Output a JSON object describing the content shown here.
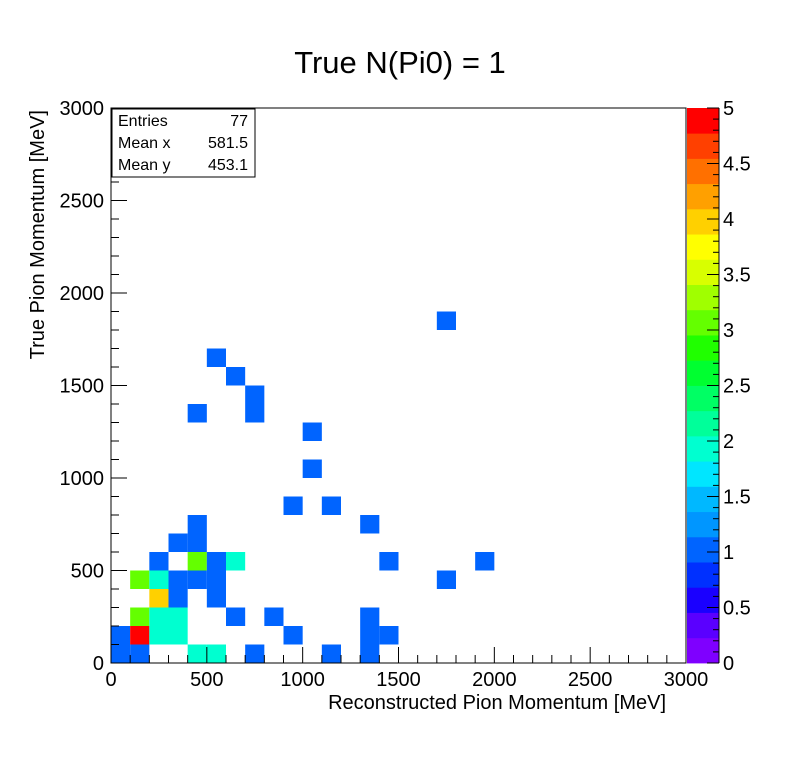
{
  "chart_data": {
    "type": "heatmap",
    "title": "True N(Pi0) = 1",
    "xlabel": "Reconstructed Pion Momentum [MeV]",
    "ylabel": "True Pion Momentum [MeV]",
    "xlim": [
      0,
      3000
    ],
    "ylim": [
      0,
      3000
    ],
    "bin_width": 100,
    "zlim": [
      0,
      5
    ],
    "x_ticks": [
      "0",
      "500",
      "1000",
      "1500",
      "2000",
      "2500",
      "3000"
    ],
    "y_ticks": [
      "0",
      "500",
      "1000",
      "1500",
      "2000",
      "2500",
      "3000"
    ],
    "z_ticks": [
      "0",
      "0.5",
      "1",
      "1.5",
      "2",
      "2.5",
      "3",
      "3.5",
      "4",
      "4.5",
      "5"
    ],
    "palette": [
      "#7f00ff",
      "#5a00ff",
      "#1a00ff",
      "#0030ff",
      "#0064ff",
      "#0096ff",
      "#00b8ff",
      "#00e6ff",
      "#00ffd0",
      "#00ff9a",
      "#00ff64",
      "#00ff30",
      "#20ff00",
      "#64ff00",
      "#a0ff00",
      "#d8ff00",
      "#ffff00",
      "#ffd000",
      "#ffa000",
      "#ff7000",
      "#ff4000",
      "#ff0000"
    ],
    "bins": [
      {
        "x": 0,
        "y": 0,
        "z": 1
      },
      {
        "x": 100,
        "y": 0,
        "z": 1
      },
      {
        "x": 400,
        "y": 0,
        "z": 2
      },
      {
        "x": 500,
        "y": 0,
        "z": 2
      },
      {
        "x": 700,
        "y": 0,
        "z": 1
      },
      {
        "x": 1100,
        "y": 0,
        "z": 1
      },
      {
        "x": 1300,
        "y": 0,
        "z": 1
      },
      {
        "x": 0,
        "y": 100,
        "z": 1
      },
      {
        "x": 100,
        "y": 100,
        "z": 5
      },
      {
        "x": 200,
        "y": 100,
        "z": 2
      },
      {
        "x": 300,
        "y": 100,
        "z": 2
      },
      {
        "x": 900,
        "y": 100,
        "z": 1
      },
      {
        "x": 1300,
        "y": 100,
        "z": 1
      },
      {
        "x": 1400,
        "y": 100,
        "z": 1
      },
      {
        "x": 100,
        "y": 200,
        "z": 3
      },
      {
        "x": 200,
        "y": 200,
        "z": 2
      },
      {
        "x": 300,
        "y": 200,
        "z": 2
      },
      {
        "x": 600,
        "y": 200,
        "z": 1
      },
      {
        "x": 800,
        "y": 200,
        "z": 1
      },
      {
        "x": 1300,
        "y": 200,
        "z": 1
      },
      {
        "x": 200,
        "y": 300,
        "z": 4
      },
      {
        "x": 300,
        "y": 300,
        "z": 1
      },
      {
        "x": 500,
        "y": 300,
        "z": 1
      },
      {
        "x": 100,
        "y": 400,
        "z": 3
      },
      {
        "x": 200,
        "y": 400,
        "z": 2
      },
      {
        "x": 300,
        "y": 400,
        "z": 1
      },
      {
        "x": 400,
        "y": 400,
        "z": 1
      },
      {
        "x": 500,
        "y": 400,
        "z": 1
      },
      {
        "x": 1700,
        "y": 400,
        "z": 1
      },
      {
        "x": 200,
        "y": 500,
        "z": 1
      },
      {
        "x": 400,
        "y": 500,
        "z": 3
      },
      {
        "x": 500,
        "y": 500,
        "z": 1
      },
      {
        "x": 600,
        "y": 500,
        "z": 2
      },
      {
        "x": 1400,
        "y": 500,
        "z": 1
      },
      {
        "x": 1900,
        "y": 500,
        "z": 1
      },
      {
        "x": 300,
        "y": 600,
        "z": 1
      },
      {
        "x": 400,
        "y": 600,
        "z": 1
      },
      {
        "x": 400,
        "y": 700,
        "z": 1
      },
      {
        "x": 1300,
        "y": 700,
        "z": 1
      },
      {
        "x": 900,
        "y": 800,
        "z": 1
      },
      {
        "x": 1100,
        "y": 800,
        "z": 1
      },
      {
        "x": 1000,
        "y": 1000,
        "z": 1
      },
      {
        "x": 1000,
        "y": 1200,
        "z": 1
      },
      {
        "x": 400,
        "y": 1300,
        "z": 1
      },
      {
        "x": 700,
        "y": 1300,
        "z": 1
      },
      {
        "x": 700,
        "y": 1400,
        "z": 1
      },
      {
        "x": 600,
        "y": 1500,
        "z": 1
      },
      {
        "x": 500,
        "y": 1600,
        "z": 1
      },
      {
        "x": 1700,
        "y": 1800,
        "z": 1
      }
    ]
  },
  "stats": {
    "entries_label": "Entries",
    "entries_value": "77",
    "mean_x_label": "Mean x",
    "mean_x_value": "581.5",
    "mean_y_label": "Mean y",
    "mean_y_value": "453.1"
  }
}
